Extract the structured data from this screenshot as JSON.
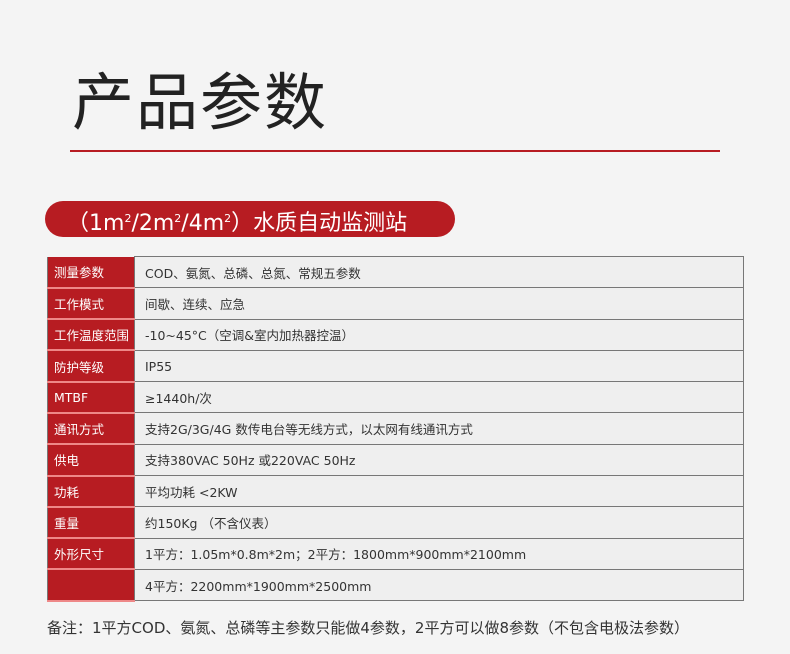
{
  "title": "产品参数",
  "banner": {
    "prefix": "（1m",
    "sup1": "2",
    "mid1": "/2m",
    "sup2": "2",
    "mid2": "/4m",
    "sup3": "2",
    "suffix": "）水质自动监测站"
  },
  "rows": [
    {
      "key": "测量参数",
      "value": "COD、氨氮、总磷、总氮、常规五参数"
    },
    {
      "key": "工作模式",
      "value": "间歇、连续、应急"
    },
    {
      "key": "工作温度范围",
      "value": "-10~45°C（空调&室内加热器控温）"
    },
    {
      "key": "防护等级",
      "value": "IP55"
    },
    {
      "key": "MTBF",
      "value": "≥1440h/次"
    },
    {
      "key": "通讯方式",
      "value": "支持2G/3G/4G 数传电台等无线方式，以太网有线通讯方式"
    },
    {
      "key": "供电",
      "value": "支持380VAC 50Hz 或220VAC 50Hz"
    },
    {
      "key": "功耗",
      "value": "平均功耗 <2KW"
    },
    {
      "key": "重量",
      "value": "约150Kg （不含仪表）"
    },
    {
      "key": "外形尺寸",
      "value": "1平方：1.05m*0.8m*2m；2平方：1800mm*900mm*2100mm"
    },
    {
      "key": "",
      "value": "4平方：2200mm*1900mm*2500mm"
    }
  ],
  "note": "备注：1平方COD、氨氮、总磷等主参数只能做4参数，2平方可以做8参数（不包含电极法参数）",
  "colors": {
    "accent": "#b71c22"
  }
}
